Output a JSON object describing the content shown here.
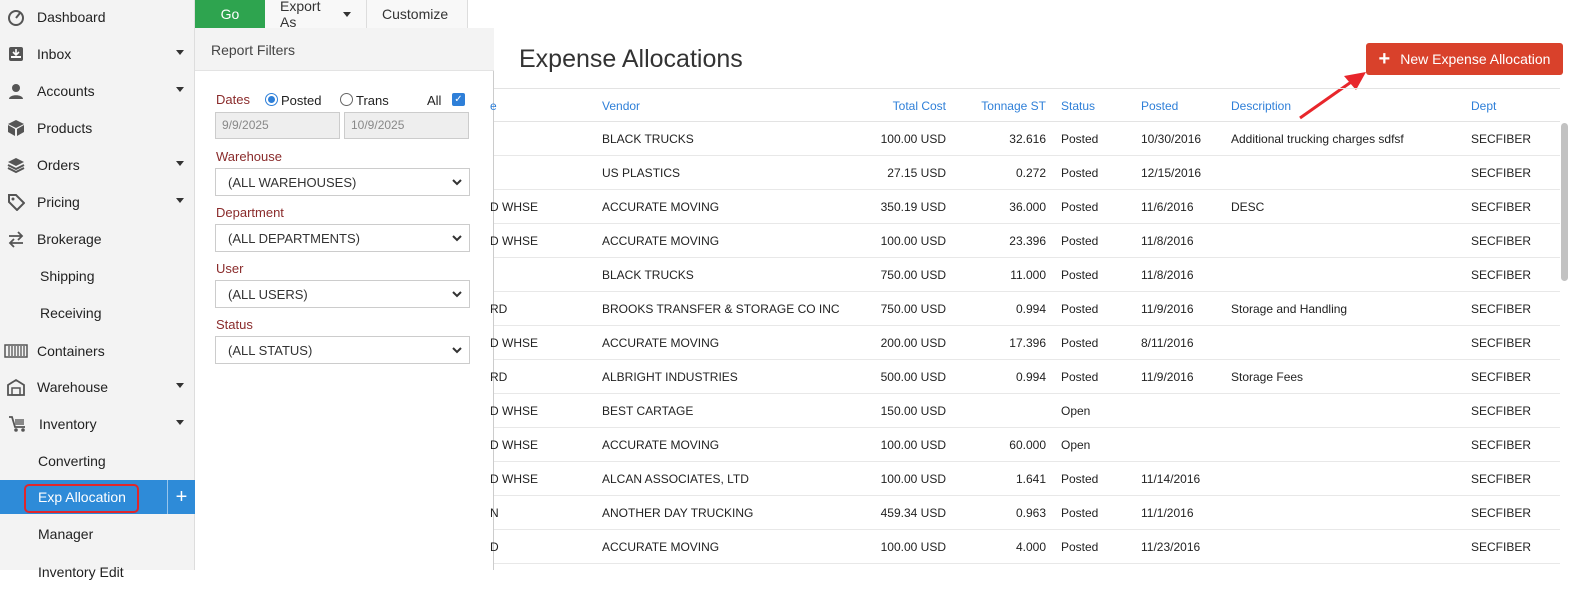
{
  "sidebar": {
    "items": [
      {
        "label": "Dashboard",
        "icon": "dashboard-icon",
        "caret": false
      },
      {
        "label": "Inbox",
        "icon": "inbox-icon",
        "caret": true
      },
      {
        "label": "Accounts",
        "icon": "user-icon",
        "caret": true
      },
      {
        "label": "Products",
        "icon": "box-icon",
        "caret": false
      },
      {
        "label": "Orders",
        "icon": "layers-icon",
        "caret": true
      },
      {
        "label": "Pricing",
        "icon": "tag-icon",
        "caret": true
      },
      {
        "label": "Brokerage",
        "icon": "swap-icon",
        "caret": false
      },
      {
        "label": "Shipping"
      },
      {
        "label": "Receiving"
      },
      {
        "label": "Containers",
        "icon": "container-icon",
        "caret": false
      },
      {
        "label": "Warehouse",
        "icon": "warehouse-icon",
        "caret": true
      },
      {
        "label": "Inventory",
        "icon": "cart-icon",
        "caret": true
      },
      {
        "label": "Converting"
      },
      {
        "label": "Exp Allocation",
        "active": true
      },
      {
        "label": "Manager"
      },
      {
        "label": "Inventory Edit"
      }
    ],
    "active_color": "#2e8bd8"
  },
  "toolbar": {
    "go_label": "Go",
    "export_label": "Export As",
    "customize_label": "Customize"
  },
  "filters": {
    "title": "Report Filters",
    "dates_label": "Dates",
    "posted_label": "Posted",
    "trans_label": "Trans",
    "all_label": "All",
    "posted_selected": true,
    "all_checked": true,
    "date_from": "9/9/2025",
    "date_to": "10/9/2025",
    "warehouse_label": "Warehouse",
    "warehouse_value": "(ALL WAREHOUSES)",
    "department_label": "Department",
    "department_value": "(ALL DEPARTMENTS)",
    "user_label": "User",
    "user_value": "(ALL USERS)",
    "status_label": "Status",
    "status_value": "(ALL STATUS)"
  },
  "main": {
    "title": "Expense Allocations",
    "new_button_label": "New Expense Allocation",
    "button_color": "#d9412b",
    "columns": {
      "col0": "e",
      "vendor": "Vendor",
      "total_cost": "Total Cost",
      "tonnage": "Tonnage ST",
      "status": "Status",
      "posted": "Posted",
      "description": "Description",
      "dept": "Dept"
    },
    "rows": [
      {
        "c0": "",
        "vendor": "BLACK TRUCKS",
        "cost": "100.00 USD",
        "ton": "32.616",
        "status": "Posted",
        "posted": "10/30/2016",
        "desc": "Additional trucking charges sdfsf",
        "dept": "SECFIBER"
      },
      {
        "c0": "",
        "vendor": "US PLASTICS",
        "cost": "27.15 USD",
        "ton": "0.272",
        "status": "Posted",
        "posted": "12/15/2016",
        "desc": "",
        "dept": "SECFIBER"
      },
      {
        "c0": "D WHSE",
        "vendor": "ACCURATE MOVING",
        "cost": "350.19 USD",
        "ton": "36.000",
        "status": "Posted",
        "posted": "11/6/2016",
        "desc": "DESC",
        "dept": "SECFIBER"
      },
      {
        "c0": "D WHSE",
        "vendor": "ACCURATE MOVING",
        "cost": "100.00 USD",
        "ton": "23.396",
        "status": "Posted",
        "posted": "11/8/2016",
        "desc": "",
        "dept": "SECFIBER"
      },
      {
        "c0": "",
        "vendor": "BLACK TRUCKS",
        "cost": "750.00 USD",
        "ton": "11.000",
        "status": "Posted",
        "posted": "11/8/2016",
        "desc": "",
        "dept": "SECFIBER"
      },
      {
        "c0": "RD",
        "vendor": "BROOKS TRANSFER & STORAGE CO INC",
        "cost": "750.00 USD",
        "ton": "0.994",
        "status": "Posted",
        "posted": "11/9/2016",
        "desc": "Storage and Handling",
        "dept": "SECFIBER"
      },
      {
        "c0": "D WHSE",
        "vendor": "ACCURATE MOVING",
        "cost": "200.00 USD",
        "ton": "17.396",
        "status": "Posted",
        "posted": "8/11/2016",
        "desc": "",
        "dept": "SECFIBER"
      },
      {
        "c0": "RD",
        "vendor": "ALBRIGHT INDUSTRIES",
        "cost": "500.00 USD",
        "ton": "0.994",
        "status": "Posted",
        "posted": "11/9/2016",
        "desc": "Storage Fees",
        "dept": "SECFIBER"
      },
      {
        "c0": "D WHSE",
        "vendor": "BEST CARTAGE",
        "cost": "150.00 USD",
        "ton": "",
        "status": "Open",
        "posted": "",
        "desc": "",
        "dept": "SECFIBER"
      },
      {
        "c0": "D WHSE",
        "vendor": "ACCURATE MOVING",
        "cost": "100.00 USD",
        "ton": "60.000",
        "status": "Open",
        "posted": "",
        "desc": "",
        "dept": "SECFIBER"
      },
      {
        "c0": "D WHSE",
        "vendor": "ALCAN ASSOCIATES, LTD",
        "cost": "100.00 USD",
        "ton": "1.641",
        "status": "Posted",
        "posted": "11/14/2016",
        "desc": "",
        "dept": "SECFIBER"
      },
      {
        "c0": "N",
        "vendor": "ANOTHER DAY TRUCKING",
        "cost": "459.34 USD",
        "ton": "0.963",
        "status": "Posted",
        "posted": "11/1/2016",
        "desc": "",
        "dept": "SECFIBER"
      },
      {
        "c0": "D",
        "vendor": "ACCURATE MOVING",
        "cost": "100.00 USD",
        "ton": "4.000",
        "status": "Posted",
        "posted": "11/23/2016",
        "desc": "",
        "dept": "SECFIBER"
      }
    ]
  }
}
